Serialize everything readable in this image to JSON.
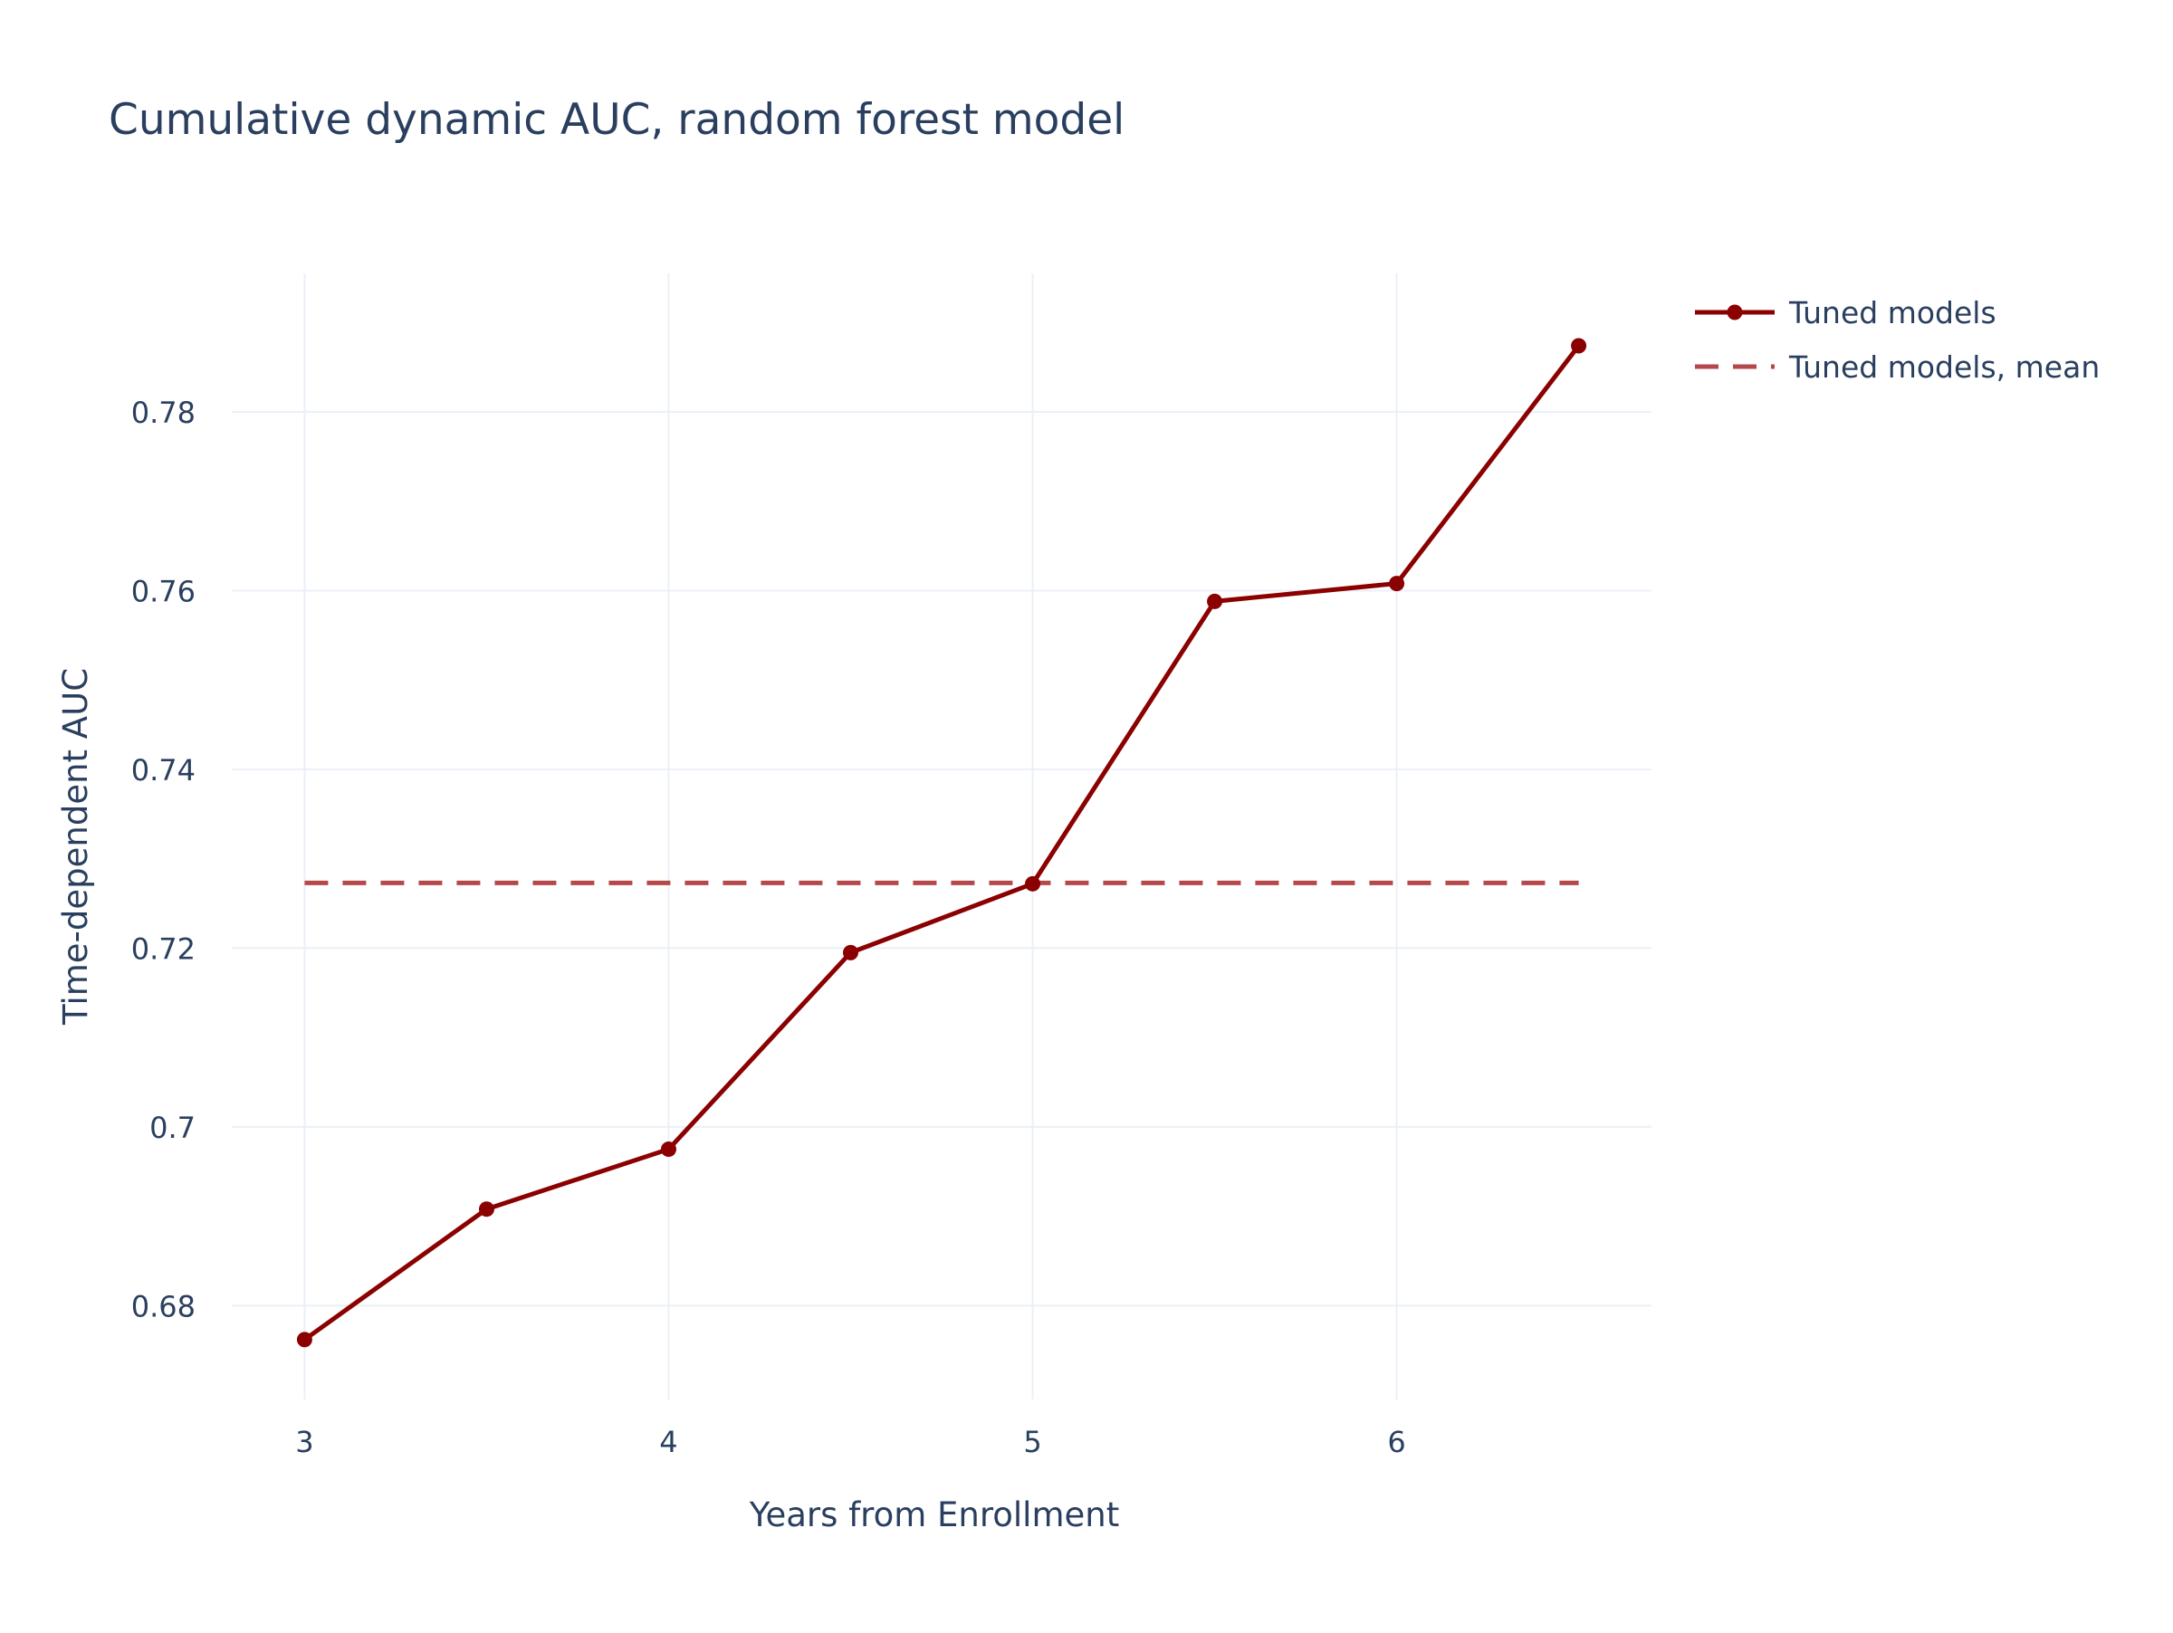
{
  "chart_data": {
    "type": "line",
    "title": "Cumulative dynamic AUC, random forest model",
    "xlabel": "Years from Enrollment",
    "ylabel": "Time-dependent AUC",
    "xlim": [
      2.8,
      6.7
    ],
    "ylim": [
      0.6695,
      0.7955
    ],
    "xticks": [
      3,
      4,
      5,
      6
    ],
    "xtick_labels": [
      "3",
      "4",
      "5",
      "6"
    ],
    "yticks": [
      0.68,
      0.7,
      0.72,
      0.74,
      0.76,
      0.78
    ],
    "ytick_labels": [
      "0.68",
      "0.7",
      "0.72",
      "0.74",
      "0.76",
      "0.78"
    ],
    "grid": true,
    "legend_position": "top-right",
    "x": [
      3,
      3.5,
      4,
      4.5,
      5,
      5.5,
      6,
      6.5
    ],
    "series": [
      {
        "name": "Tuned models",
        "style": "line+markers",
        "color": "#8B0000",
        "values": [
          0.6762,
          0.6908,
          0.6975,
          0.7195,
          0.7272,
          0.7588,
          0.7608,
          0.7874
        ]
      },
      {
        "name": "Tuned models, mean",
        "style": "dashed",
        "color": "#B5484B",
        "x_range": [
          3,
          6.5
        ],
        "value": 0.7273
      }
    ]
  },
  "colors": {
    "title_text": "#2a3f5f",
    "axis_text": "#2a3f5f",
    "grid": "#ebf0f8",
    "background": "#ffffff"
  }
}
